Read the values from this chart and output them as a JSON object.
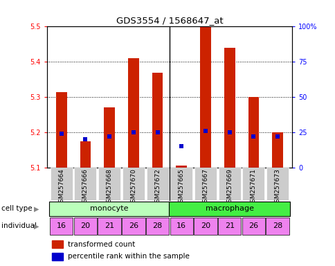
{
  "title": "GDS3554 / 1568647_at",
  "samples": [
    "GSM257664",
    "GSM257666",
    "GSM257668",
    "GSM257670",
    "GSM257672",
    "GSM257665",
    "GSM257667",
    "GSM257669",
    "GSM257671",
    "GSM257673"
  ],
  "red_values": [
    5.315,
    5.175,
    5.27,
    5.41,
    5.37,
    5.105,
    5.5,
    5.44,
    5.3,
    5.2
  ],
  "blue_pct": [
    0.24,
    0.2,
    0.22,
    0.25,
    0.25,
    0.15,
    0.26,
    0.25,
    0.22,
    0.22
  ],
  "ylim_left": [
    5.1,
    5.5
  ],
  "ylim_right": [
    0.0,
    1.0
  ],
  "yticks_left": [
    5.1,
    5.2,
    5.3,
    5.4,
    5.5
  ],
  "yticks_right": [
    0.0,
    0.25,
    0.5,
    0.75,
    1.0
  ],
  "ytick_labels_right": [
    "0",
    "25",
    "50",
    "75",
    "100%"
  ],
  "individuals": [
    "16",
    "20",
    "21",
    "26",
    "28",
    "16",
    "20",
    "21",
    "26",
    "28"
  ],
  "monocyte_color": "#BBFFBB",
  "macrophage_color": "#44EE44",
  "individual_color": "#EE82EE",
  "bar_color": "#CC2200",
  "blue_color": "#0000CC",
  "tick_bg": "#CCCCCC",
  "label_cell_type": "cell type",
  "label_individual": "individual",
  "bar_width": 0.45
}
